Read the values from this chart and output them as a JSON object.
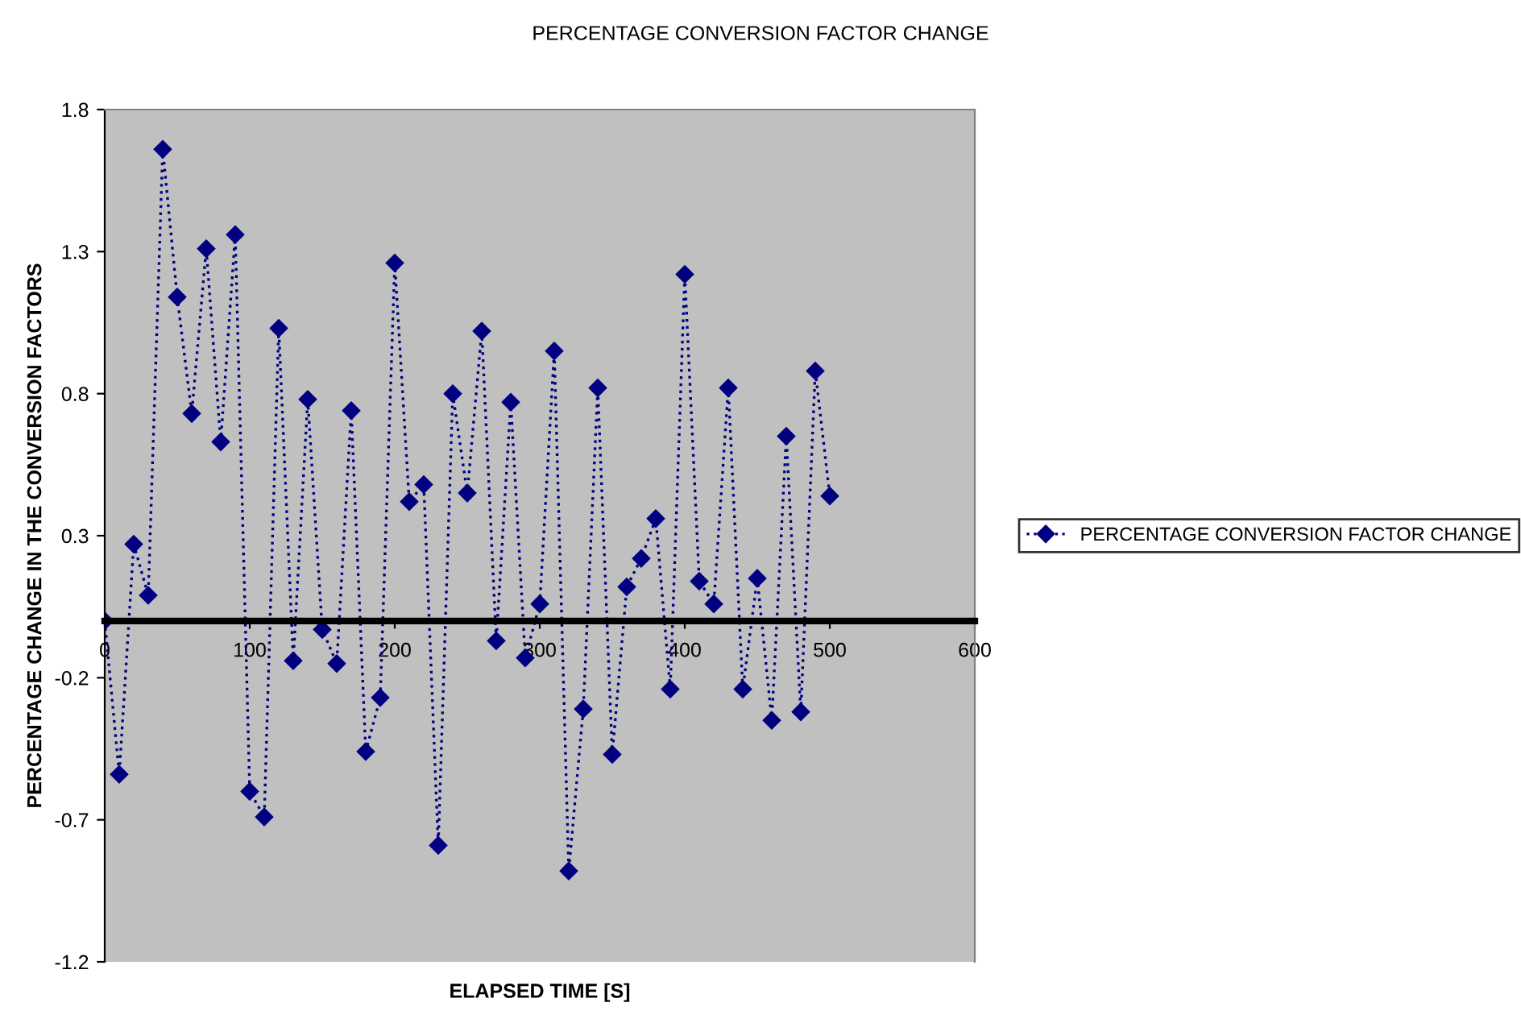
{
  "chart_data": {
    "type": "line",
    "title": "PERCENTAGE CONVERSION FACTOR CHANGE",
    "xlabel": "ELAPSED TIME [S]",
    "ylabel": "PERCENTAGE CHANGE IN THE CONVERSION FACTORS",
    "x": [
      0,
      10,
      20,
      30,
      40,
      50,
      60,
      70,
      80,
      90,
      100,
      110,
      120,
      130,
      140,
      150,
      160,
      170,
      180,
      190,
      200,
      210,
      220,
      230,
      240,
      250,
      260,
      270,
      280,
      290,
      300,
      310,
      320,
      330,
      340,
      350,
      360,
      370,
      380,
      390,
      400,
      410,
      420,
      430,
      440,
      450,
      460,
      470,
      480,
      490,
      500
    ],
    "series": [
      {
        "name": "PERCENTAGE CONVERSION FACTOR CHANGE",
        "color": "#000080",
        "values": [
          0,
          -0.54,
          0.27,
          0.09,
          1.66,
          1.14,
          0.73,
          1.31,
          0.63,
          1.36,
          -0.6,
          -0.69,
          1.03,
          -0.14,
          0.78,
          -0.03,
          -0.15,
          0.74,
          -0.46,
          -0.27,
          1.26,
          0.42,
          0.48,
          -0.79,
          0.8,
          0.45,
          1.02,
          -0.07,
          0.77,
          -0.13,
          0.06,
          0.95,
          -0.88,
          -0.31,
          0.82,
          -0.47,
          0.12,
          0.22,
          0.36,
          -0.24,
          1.22,
          0.14,
          0.06,
          0.82,
          -0.24,
          0.15,
          -0.35,
          0.65,
          -0.32,
          0.88,
          0.44
        ]
      }
    ],
    "xlim": [
      0,
      600
    ],
    "xticks": [
      0,
      100,
      200,
      300,
      400,
      500,
      600
    ],
    "ylim": [
      -1.2,
      1.8
    ],
    "yticks": [
      -1.2,
      -0.7,
      -0.2,
      0.3,
      0.8,
      1.3,
      1.8
    ],
    "marker": "diamond",
    "line_style": "dotted",
    "grid": false,
    "legend": "right"
  }
}
